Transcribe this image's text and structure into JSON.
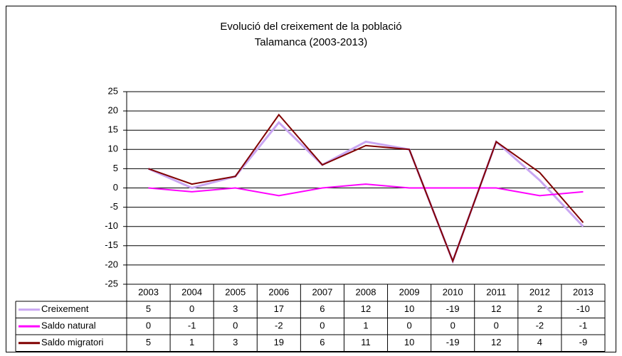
{
  "chart_data": {
    "type": "line",
    "title": "Evolució del creixement de la població",
    "subtitle": "Talamanca (2003-2013)",
    "categories": [
      "2003",
      "2004",
      "2005",
      "2006",
      "2007",
      "2008",
      "2009",
      "2010",
      "2011",
      "2012",
      "2013"
    ],
    "series": [
      {
        "name": "Creixement",
        "color": "#c9a6f2",
        "values": [
          5,
          0,
          3,
          17,
          6,
          12,
          10,
          -19,
          12,
          2,
          -10
        ]
      },
      {
        "name": "Saldo natural",
        "color": "#ff00ff",
        "values": [
          0,
          -1,
          0,
          -2,
          0,
          1,
          0,
          0,
          0,
          -2,
          -1
        ]
      },
      {
        "name": "Saldo migratori",
        "color": "#800000",
        "values": [
          5,
          1,
          3,
          19,
          6,
          11,
          10,
          -19,
          12,
          4,
          -9
        ]
      }
    ],
    "ylim": [
      -25,
      25
    ],
    "yticks": [
      -25,
      -20,
      -15,
      -10,
      -5,
      0,
      5,
      10,
      15,
      20,
      25
    ],
    "grid": true
  }
}
